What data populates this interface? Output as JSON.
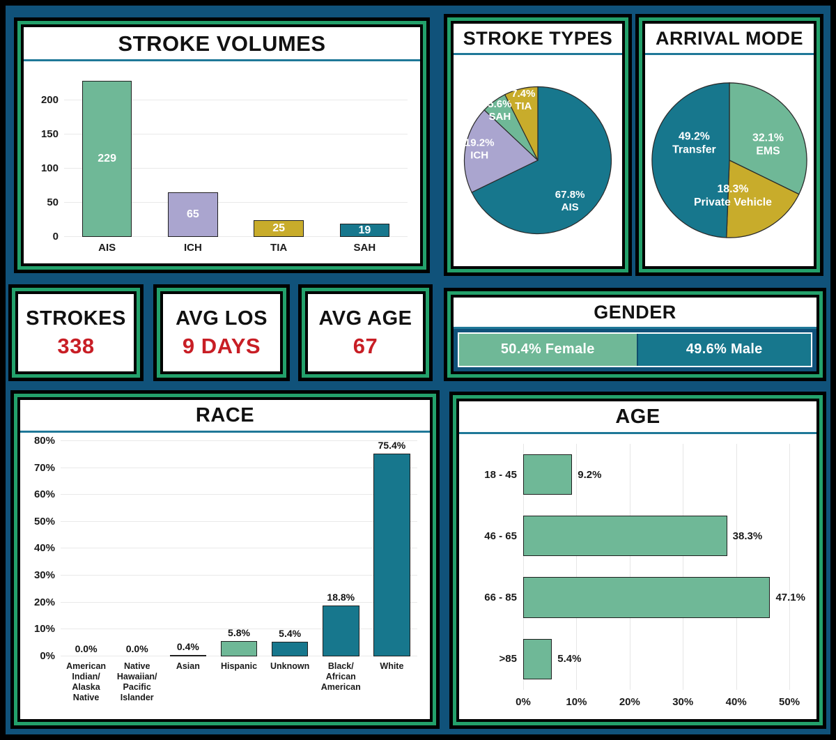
{
  "colors": {
    "background_navy": "#10527a",
    "frame_green": "#23a16b",
    "frame_black": "#000000",
    "title_divider_teal": "#1f7898",
    "teal": "#17778d",
    "green": "#6fb897",
    "purple": "#aaa5cf",
    "gold": "#c8ac2b",
    "stat_value_red": "#c81e25"
  },
  "stats": [
    {
      "id": "strokes",
      "label": "STROKES",
      "value": "338"
    },
    {
      "id": "avg_los",
      "label": "AVG LOS",
      "value": "9 DAYS"
    },
    {
      "id": "avg_age",
      "label": "AVG AGE",
      "value": "67"
    }
  ],
  "chart_data": [
    {
      "id": "stroke_volumes",
      "type": "bar",
      "title": "STROKE VOLUMES",
      "categories": [
        "AIS",
        "ICH",
        "TIA",
        "SAH"
      ],
      "values": [
        229,
        65,
        25,
        19
      ],
      "value_labels": [
        "229",
        "65",
        "25",
        "19"
      ],
      "bar_colors": [
        "#6fb897",
        "#aaa5cf",
        "#c8ac2b",
        "#17778d"
      ],
      "ylim": [
        0,
        245
      ],
      "yticks": [
        0,
        50,
        100,
        150,
        200
      ],
      "ytick_labels": [
        "0",
        "50",
        "100",
        "150",
        "200"
      ],
      "grid": true,
      "legend": "none"
    },
    {
      "id": "stroke_types",
      "type": "pie",
      "title": "STROKE TYPES",
      "start_angle": "12-oclock",
      "direction": "clockwise",
      "slices": [
        {
          "label": "AIS",
          "value": 67.8,
          "text": "67.8%\nAIS",
          "color": "#17778d"
        },
        {
          "label": "ICH",
          "value": 19.2,
          "text": "19.2%\nICH",
          "color": "#aaa5cf"
        },
        {
          "label": "SAH",
          "value": 5.6,
          "text": "5.6%\nSAH",
          "color": "#6fb897"
        },
        {
          "label": "TIA",
          "value": 7.4,
          "text": "7.4%\nTIA",
          "color": "#c8ac2b"
        }
      ]
    },
    {
      "id": "arrival_mode",
      "type": "pie",
      "title": "ARRIVAL MODE",
      "start_angle": "12-oclock",
      "direction": "clockwise",
      "slices": [
        {
          "label": "EMS",
          "value": 32.1,
          "text": "32.1%\nEMS",
          "color": "#6fb897"
        },
        {
          "label": "Private Vehicle",
          "value": 18.3,
          "text": "18.3%\nPrivate Vehicle",
          "color": "#c8ac2b"
        },
        {
          "label": "Transfer",
          "value": 49.2,
          "text": "49.2%\nTransfer",
          "color": "#17778d"
        }
      ]
    },
    {
      "id": "gender",
      "type": "stacked_bar",
      "title": "GENDER",
      "segments": [
        {
          "label": "Female",
          "pct": 50.4,
          "text": "50.4% Female",
          "color": "#6fb897"
        },
        {
          "label": "Male",
          "pct": 49.6,
          "text": "49.6% Male",
          "color": "#17778d"
        }
      ]
    },
    {
      "id": "race",
      "type": "bar",
      "title": "RACE",
      "categories": [
        "American\nIndian/\nAlaska\nNative",
        "Native\nHawaiian/\nPacific\nIslander",
        "Asian",
        "Hispanic",
        "Unknown",
        "Black/\nAfrican\nAmerican",
        "White"
      ],
      "values": [
        0.0,
        0.0,
        0.4,
        5.8,
        5.4,
        18.8,
        75.4
      ],
      "value_labels": [
        "0.0%",
        "0.0%",
        "0.4%",
        "5.8%",
        "5.4%",
        "18.8%",
        "75.4%"
      ],
      "bar_colors": [
        "#17778d",
        "#17778d",
        "#17778d",
        "#6fb897",
        "#17778d",
        "#17778d",
        "#17778d"
      ],
      "ylim": [
        0,
        80
      ],
      "yticks": [
        0,
        10,
        20,
        30,
        40,
        50,
        60,
        70,
        80
      ],
      "ytick_labels": [
        "0%",
        "10%",
        "20%",
        "30%",
        "40%",
        "50%",
        "60%",
        "70%",
        "80%"
      ],
      "grid": true,
      "legend": "none"
    },
    {
      "id": "age",
      "type": "hbar",
      "title": "AGE",
      "categories": [
        "18 - 45",
        "46 - 65",
        "66 - 85",
        ">85"
      ],
      "values": [
        9.2,
        38.3,
        47.1,
        5.4
      ],
      "value_labels": [
        "9.2%",
        "38.3%",
        "47.1%",
        "5.4%"
      ],
      "bar_color": "#6fb897",
      "xlim": [
        0,
        53
      ],
      "xticks": [
        0,
        10,
        20,
        30,
        40,
        50
      ],
      "xtick_labels": [
        "0%",
        "10%",
        "20%",
        "30%",
        "40%",
        "50%"
      ],
      "grid": true,
      "legend": "none"
    }
  ]
}
